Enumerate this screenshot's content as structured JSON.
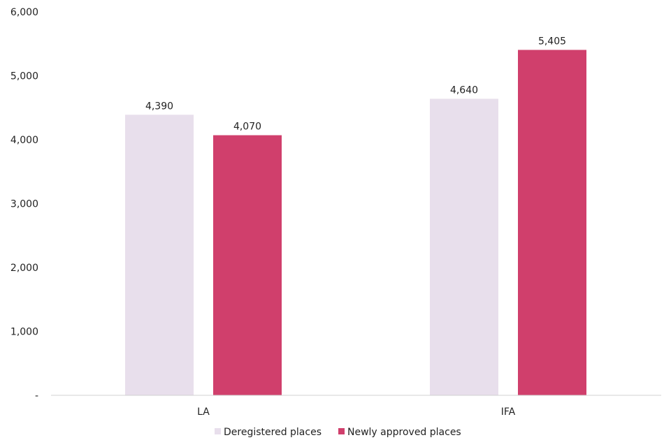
{
  "chart_data": {
    "type": "bar",
    "title": "",
    "xlabel": "",
    "ylabel": "",
    "ylim": [
      0,
      6000
    ],
    "yticks": [
      {
        "value": 0,
        "label": "-"
      },
      {
        "value": 1000,
        "label": "1,000"
      },
      {
        "value": 2000,
        "label": "2,000"
      },
      {
        "value": 3000,
        "label": "3,000"
      },
      {
        "value": 4000,
        "label": "4,000"
      },
      {
        "value": 5000,
        "label": "5,000"
      },
      {
        "value": 6000,
        "label": "6,000"
      }
    ],
    "categories": [
      "LA",
      "IFA"
    ],
    "series": [
      {
        "name": "Deregistered places",
        "color": "#e8dfec",
        "values": [
          4390,
          4640
        ],
        "labels": [
          "4,390",
          "4,640"
        ]
      },
      {
        "name": "Newly approved places",
        "color": "#d03f6c",
        "values": [
          4070,
          5405
        ],
        "labels": [
          "4,070",
          "5,405"
        ]
      }
    ],
    "legend": "bottom-center",
    "grid": false
  }
}
